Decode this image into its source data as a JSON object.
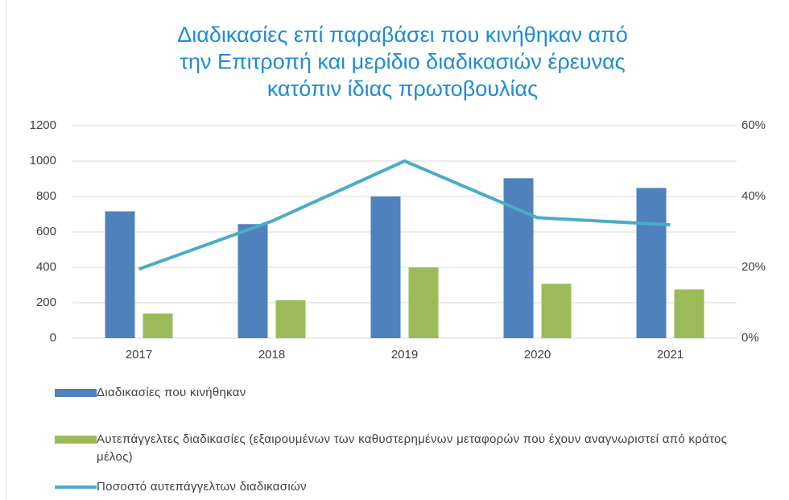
{
  "chart_data": {
    "type": "bar",
    "title": "Διαδικασίες επί παραβάσει που κινήθηκαν από την Επιτροπή και μερίδιο διαδικασιών έρευνας κατόπιν ίδιας πρωτοβουλίας",
    "categories": [
      "2017",
      "2018",
      "2019",
      "2020",
      "2021"
    ],
    "series": [
      {
        "name": "Διαδικασίες που κινήθηκαν",
        "type": "bar",
        "color": "#4f81bd",
        "values": [
          716,
          644,
          800,
          903,
          848
        ]
      },
      {
        "name": "Αυτεπάγγελτες διαδικασίες (εξαιρουμένων των καθυστερημένων μεταφορών που έχουν αναγνωριστεί από κράτος μέλος)",
        "type": "bar",
        "color": "#9bbb59",
        "values": [
          139,
          214,
          399,
          307,
          275
        ]
      },
      {
        "name": "Ποσοστό αυτεπάγγελτων διαδικασιών",
        "type": "line",
        "axis": "y2",
        "color": "#4bacc6",
        "values": [
          19.5,
          33,
          50,
          34,
          32
        ]
      }
    ],
    "ylim": [
      0,
      1200
    ],
    "yticks": [
      0,
      200,
      400,
      600,
      800,
      1000,
      1200
    ],
    "y2lim": [
      0,
      60
    ],
    "y2ticks": [
      {
        "value": 0,
        "label": "0%"
      },
      {
        "value": 20,
        "label": "20%"
      },
      {
        "value": 40,
        "label": "40%"
      },
      {
        "value": 60,
        "label": "60%"
      }
    ],
    "grid": true,
    "legend": "bottom"
  }
}
